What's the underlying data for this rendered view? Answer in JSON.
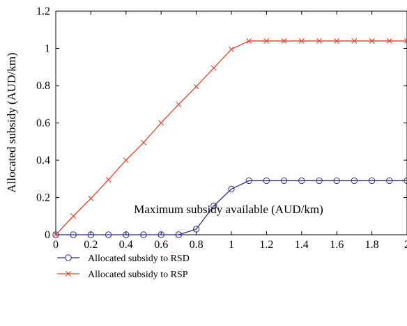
{
  "chart_data": {
    "type": "line",
    "xlabel": "Maximum subsidy available (AUD/km)",
    "ylabel": "Allocated subsidy (AUD/km)",
    "xlim": [
      0,
      2
    ],
    "ylim": [
      0,
      1.2
    ],
    "xticks": [
      "0",
      "0.2",
      "0.4",
      "0.6",
      "0.8",
      "1",
      "1.2",
      "1.4",
      "1.6",
      "1.8",
      "2"
    ],
    "yticks": [
      "0",
      "0.2",
      "0.4",
      "0.6",
      "0.8",
      "1",
      "1.2"
    ],
    "grid": false,
    "legend_position": "bottom-left, below plot",
    "x": [
      0,
      0.1,
      0.2,
      0.3,
      0.4,
      0.5,
      0.6,
      0.7,
      0.8,
      0.9,
      1.0,
      1.1,
      1.2,
      1.3,
      1.4,
      1.5,
      1.6,
      1.7,
      1.8,
      1.9,
      2.0
    ],
    "series": [
      {
        "name": "Allocated subsidy to RSD",
        "color": "#2b2b8f",
        "marker": "circle",
        "values": [
          0,
          0,
          0,
          0,
          0,
          0,
          0,
          0,
          0.03,
          0.155,
          0.245,
          0.29,
          0.29,
          0.29,
          0.29,
          0.29,
          0.29,
          0.29,
          0.29,
          0.29,
          0.29
        ]
      },
      {
        "name": "Allocated subsidy to RSP",
        "color": "#e8402a",
        "marker": "x",
        "values": [
          0,
          0.1,
          0.195,
          0.295,
          0.4,
          0.495,
          0.6,
          0.7,
          0.795,
          0.895,
          0.995,
          1.04,
          1.04,
          1.04,
          1.04,
          1.04,
          1.04,
          1.04,
          1.04,
          1.04,
          1.04
        ]
      }
    ]
  }
}
